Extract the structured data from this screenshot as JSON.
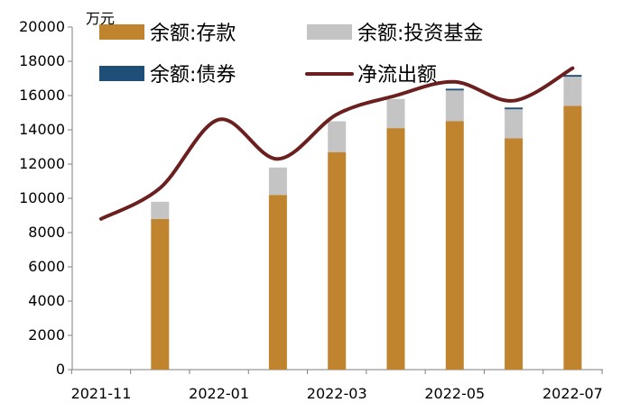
{
  "chart_data": {
    "type": "bar",
    "y_unit": "万元",
    "x_tick_labels": [
      "2021-11",
      "2022-01",
      "2022-03",
      "2022-05",
      "2022-07"
    ],
    "y_ticks": [
      0,
      2000,
      4000,
      6000,
      8000,
      10000,
      12000,
      14000,
      16000,
      18000,
      20000
    ],
    "ylim": [
      0,
      20000
    ],
    "months": [
      "2021-11",
      "2021-12",
      "2022-01",
      "2022-02",
      "2022-03",
      "2022-04",
      "2022-05",
      "2022-06",
      "2022-07"
    ],
    "series": [
      {
        "name": "余额:存款",
        "kind": "stacked-bar",
        "color": "#c0832e",
        "values": [
          null,
          8800,
          null,
          10200,
          12700,
          14100,
          14500,
          13500,
          15400
        ]
      },
      {
        "name": "余额:投资基金",
        "kind": "stacked-bar",
        "color": "#c4c4c4",
        "values": [
          null,
          1000,
          null,
          1600,
          1800,
          1700,
          1800,
          1700,
          1700
        ]
      },
      {
        "name": "余额:债券",
        "kind": "stacked-bar",
        "color": "#1f4e79",
        "values": [
          null,
          0,
          null,
          0,
          0,
          0,
          100,
          100,
          100
        ]
      },
      {
        "name": "净流出额",
        "kind": "line",
        "color": "#6b1f1f",
        "values": [
          8800,
          10600,
          14600,
          12300,
          14900,
          16000,
          16800,
          15700,
          17600
        ]
      }
    ],
    "legend": {
      "placement": "top",
      "items": [
        {
          "label": "余额:存款",
          "color": "#c0832e",
          "kind": "box"
        },
        {
          "label": "余额:投资基金",
          "color": "#c4c4c4",
          "kind": "box"
        },
        {
          "label": "余额:债券",
          "color": "#1f4e79",
          "kind": "box"
        },
        {
          "label": "净流出额",
          "color": "#6b1f1f",
          "kind": "line"
        }
      ]
    },
    "grid": false
  }
}
